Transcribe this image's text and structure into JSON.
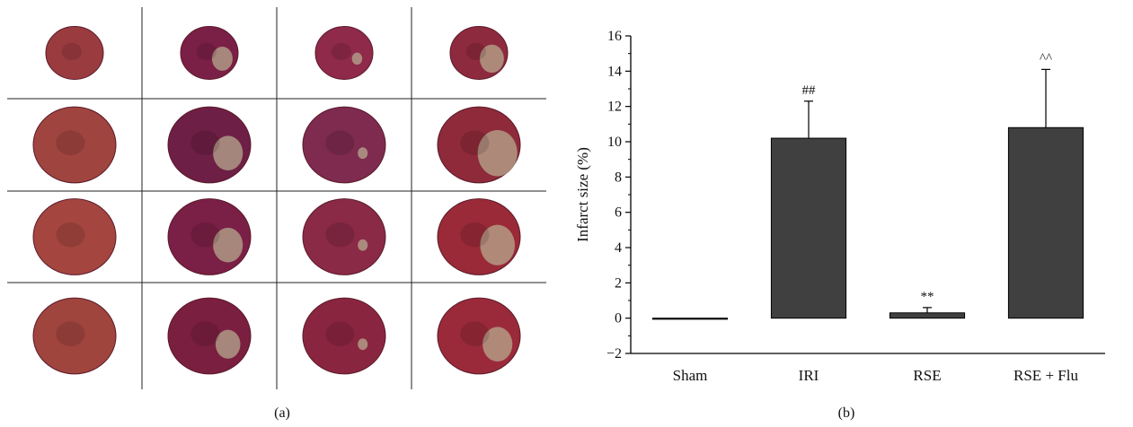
{
  "panel_a": {
    "caption": "(a)",
    "grid": {
      "rows": 4,
      "cols": 4
    },
    "heart_slices": [
      {
        "row": 0,
        "col": 0,
        "tissue": "#9a3b3f",
        "infarct": 0.0
      },
      {
        "row": 0,
        "col": 1,
        "tissue": "#7a1f46",
        "infarct": 0.3
      },
      {
        "row": 0,
        "col": 2,
        "tissue": "#8f2a4a",
        "infarct": 0.15
      },
      {
        "row": 0,
        "col": 3,
        "tissue": "#8e2a3e",
        "infarct": 0.35
      },
      {
        "row": 1,
        "col": 0,
        "tissue": "#a0443f",
        "infarct": 0.0
      },
      {
        "row": 1,
        "col": 1,
        "tissue": "#6e1f45",
        "infarct": 0.3
      },
      {
        "row": 1,
        "col": 2,
        "tissue": "#7e2b4f",
        "infarct": 0.1
      },
      {
        "row": 1,
        "col": 3,
        "tissue": "#8e2a3a",
        "infarct": 0.4
      },
      {
        "row": 2,
        "col": 0,
        "tissue": "#a4463f",
        "infarct": 0.0
      },
      {
        "row": 2,
        "col": 1,
        "tissue": "#7a1f45",
        "infarct": 0.3
      },
      {
        "row": 2,
        "col": 2,
        "tissue": "#8a2a47",
        "infarct": 0.1
      },
      {
        "row": 2,
        "col": 3,
        "tissue": "#9a2a38",
        "infarct": 0.35
      },
      {
        "row": 3,
        "col": 0,
        "tissue": "#a0443e",
        "infarct": 0.0
      },
      {
        "row": 3,
        "col": 1,
        "tissue": "#7a1f40",
        "infarct": 0.25
      },
      {
        "row": 3,
        "col": 2,
        "tissue": "#8a2540",
        "infarct": 0.1
      },
      {
        "row": 3,
        "col": 3,
        "tissue": "#9a2a3a",
        "infarct": 0.3
      }
    ],
    "colors": {
      "infarct_region": "#b7a98f",
      "background": "#ffffff",
      "grid_line": "#222222"
    }
  },
  "panel_b": {
    "caption": "(b)",
    "chart_data": {
      "type": "bar",
      "categories": [
        "Sham",
        "IRI",
        "RSE",
        "RSE + Flu"
      ],
      "values": [
        0.0,
        10.2,
        0.3,
        10.8
      ],
      "error_plus": [
        0.0,
        2.1,
        0.3,
        3.3
      ],
      "annotations": [
        "",
        "##",
        "**",
        "^^"
      ],
      "xlabel": "",
      "ylabel": "Infarct size (%)",
      "ylim": [
        -2,
        16
      ],
      "yticks": [
        -2,
        0,
        2,
        4,
        6,
        8,
        10,
        12,
        14,
        16
      ],
      "grid": false,
      "legend": "none",
      "bar_color": "#404040"
    }
  }
}
